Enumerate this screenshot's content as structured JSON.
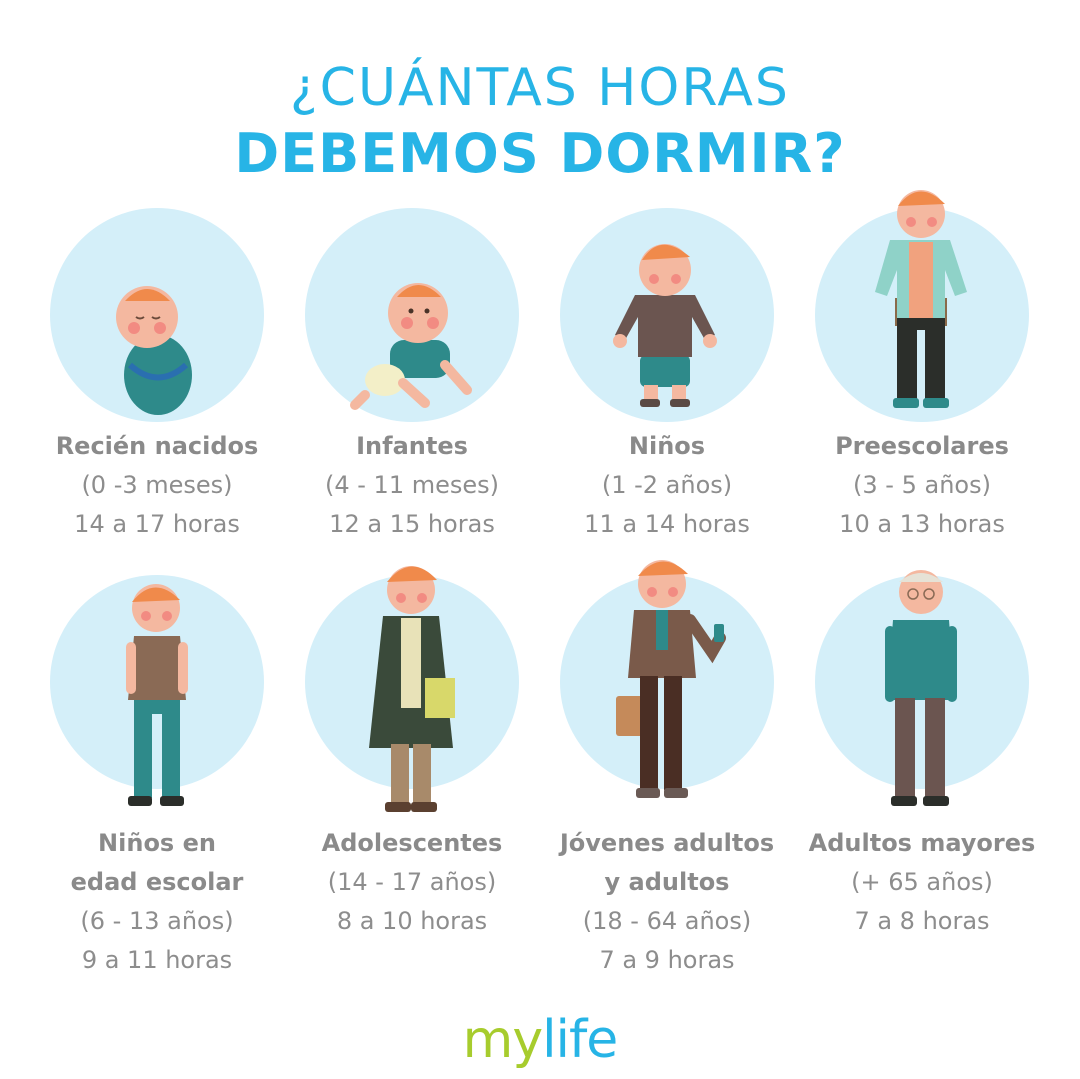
{
  "title": {
    "line1": "¿CUÁNTAS HORAS",
    "line2": "DEBEMOS DORMIR?"
  },
  "groups": [
    {
      "name": "Recién nacidos",
      "range": "(0 -3 meses)",
      "hours": "14 a 17 horas"
    },
    {
      "name": "Infantes",
      "range": "(4 - 11 meses)",
      "hours": "12 a 15 horas"
    },
    {
      "name": "Niños",
      "range": "(1 -2 años)",
      "hours": "11 a 14 horas"
    },
    {
      "name": "Preescolares",
      "range": "(3 - 5 años)",
      "hours": "10 a 13 horas"
    },
    {
      "name_line1": "Niños en",
      "name_line2": "edad escolar",
      "range": "(6 - 13 años)",
      "hours": "9 a 11 horas"
    },
    {
      "name": "Adolescentes",
      "range": "(14 - 17 años)",
      "hours": "8 a 10 horas"
    },
    {
      "name_line1": "Jóvenes adultos",
      "name_line2": "y adultos",
      "range": "(18 - 64 años)",
      "hours": "7 a 9 horas"
    },
    {
      "name": "Adultos mayores",
      "range": "(+ 65 años)",
      "hours": "7 a 8 horas"
    }
  ],
  "brand": {
    "my": "my",
    "life": "life"
  },
  "colors": {
    "title": "#27b4e6",
    "circle": "#d4eff9",
    "caption": "#8d8d8d",
    "brand_my": "#a7cc2d",
    "brand_life": "#27b4e6"
  },
  "illustrations": [
    "newborn-figure",
    "infant-figure",
    "toddler-figure",
    "preschooler-figure",
    "school-child-figure",
    "teenager-figure",
    "adult-figure",
    "elderly-figure"
  ]
}
